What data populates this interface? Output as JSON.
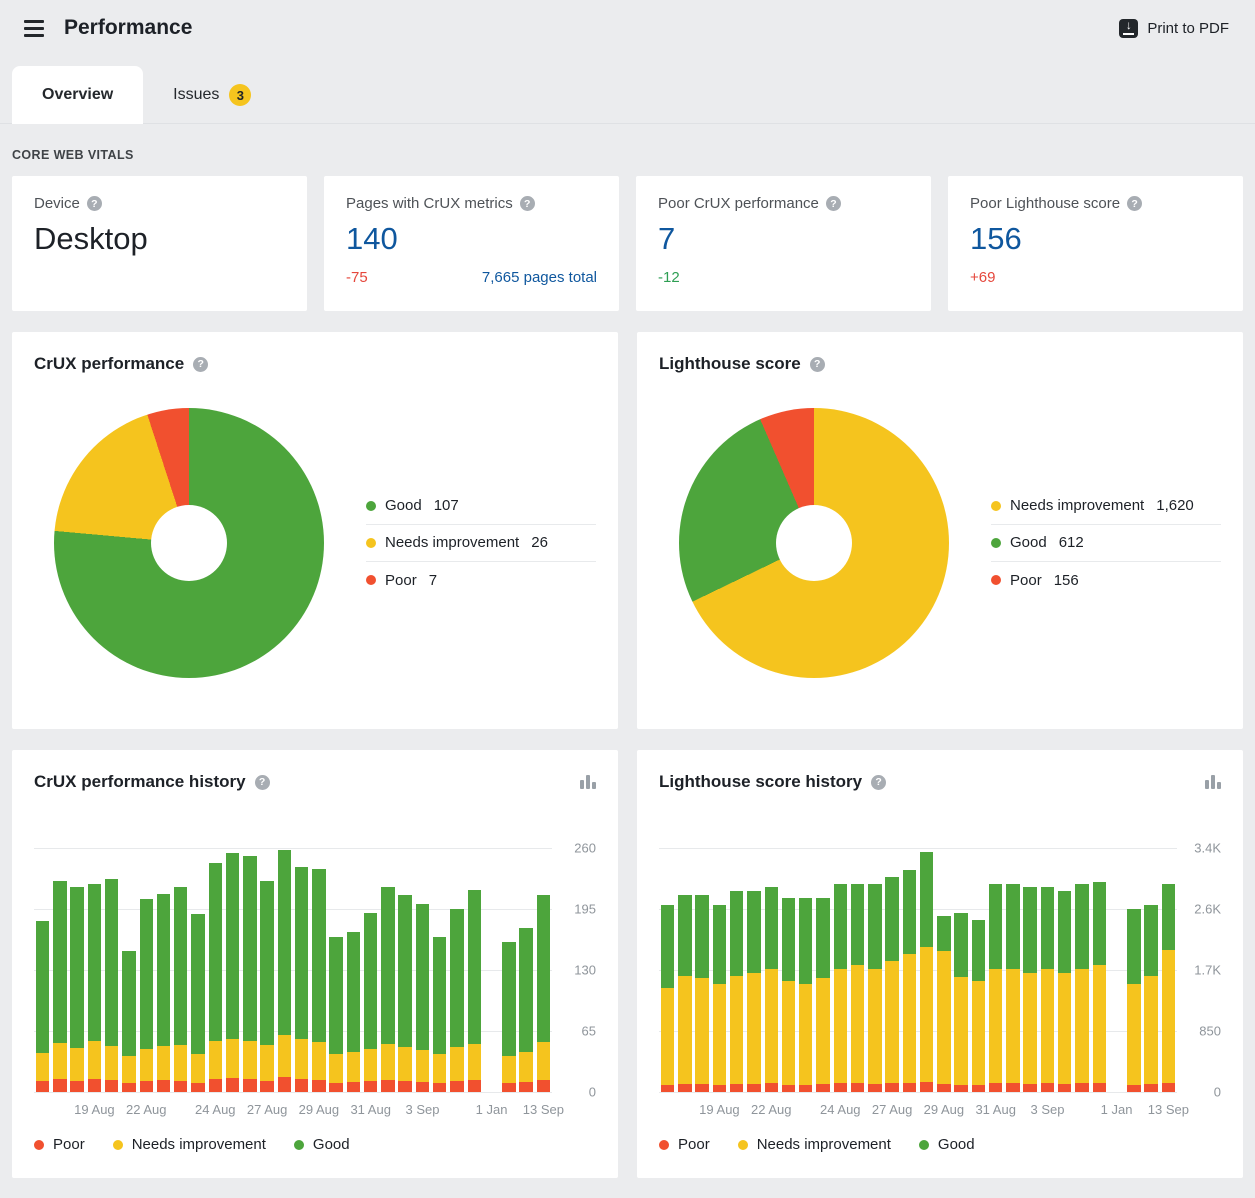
{
  "header": {
    "title": "Performance",
    "print_label": "Print to PDF"
  },
  "tabs": [
    {
      "label": "Overview",
      "active": true
    },
    {
      "label": "Issues",
      "badge": "3"
    }
  ],
  "section_label": "CORE WEB VITALS",
  "metrics": [
    {
      "label": "Device",
      "value": "Desktop"
    },
    {
      "label": "Pages with CrUX metrics",
      "value": "140",
      "delta": "-75",
      "extra_link": "7,665 pages total"
    },
    {
      "label": "Poor CrUX performance",
      "value": "7",
      "delta": "-12"
    },
    {
      "label": "Poor Lighthouse score",
      "value": "156",
      "delta": "+69"
    }
  ],
  "colors": {
    "good": "#4DA53C",
    "needs_improvement": "#F5C41E",
    "poor": "#F1502F",
    "blue": "#0F579E",
    "delta_red": "#E5473C",
    "delta_green": "#2E9E53"
  },
  "chart_data": [
    {
      "type": "pie",
      "title": "CrUX performance",
      "donut": true,
      "segments": [
        {
          "label": "Good",
          "value": 107,
          "display": "107",
          "color_key": "good"
        },
        {
          "label": "Needs improvement",
          "value": 26,
          "display": "26",
          "color_key": "needs_improvement"
        },
        {
          "label": "Poor",
          "value": 7,
          "display": "7",
          "color_key": "poor"
        }
      ]
    },
    {
      "type": "pie",
      "title": "Lighthouse score",
      "donut": true,
      "segments": [
        {
          "label": "Needs improvement",
          "value": 1620,
          "display": "1,620",
          "color_key": "needs_improvement"
        },
        {
          "label": "Good",
          "value": 612,
          "display": "612",
          "color_key": "good"
        },
        {
          "label": "Poor",
          "value": 156,
          "display": "156",
          "color_key": "poor"
        }
      ]
    },
    {
      "type": "bar",
      "title": "CrUX performance history",
      "stacked": true,
      "ymax": 260,
      "yticks": [
        "260",
        "195",
        "130",
        "65",
        "0"
      ],
      "x_ticks": [
        {
          "i": 3,
          "label": "19 Aug"
        },
        {
          "i": 6,
          "label": "22 Aug"
        },
        {
          "i": 10,
          "label": "24 Aug"
        },
        {
          "i": 13,
          "label": "27 Aug"
        },
        {
          "i": 16,
          "label": "29 Aug"
        },
        {
          "i": 19,
          "label": "31 Aug"
        },
        {
          "i": 22,
          "label": "3 Sep"
        },
        {
          "i": 26,
          "label": "1 Jan"
        },
        {
          "i": 29,
          "label": "13 Sep"
        }
      ],
      "series_order": [
        "poor",
        "needs_improvement",
        "good"
      ],
      "bars": [
        [
          12,
          30,
          140
        ],
        [
          14,
          38,
          173
        ],
        [
          12,
          35,
          172
        ],
        [
          14,
          40,
          168
        ],
        [
          13,
          36,
          178
        ],
        [
          10,
          28,
          112
        ],
        [
          12,
          34,
          160
        ],
        [
          13,
          36,
          162
        ],
        [
          12,
          38,
          168
        ],
        [
          10,
          30,
          150
        ],
        [
          14,
          40,
          190
        ],
        [
          15,
          42,
          198
        ],
        [
          14,
          40,
          198
        ],
        [
          12,
          38,
          175
        ],
        [
          16,
          45,
          197
        ],
        [
          14,
          42,
          184
        ],
        [
          13,
          40,
          185
        ],
        [
          10,
          30,
          125
        ],
        [
          11,
          32,
          128
        ],
        [
          12,
          34,
          145
        ],
        [
          13,
          38,
          167
        ],
        [
          12,
          36,
          162
        ],
        [
          11,
          34,
          155
        ],
        [
          10,
          30,
          125
        ],
        [
          12,
          36,
          147
        ],
        [
          13,
          38,
          164
        ],
        null,
        [
          10,
          28,
          122
        ],
        [
          11,
          32,
          132
        ],
        [
          13,
          40,
          157
        ]
      ],
      "legend": [
        {
          "label": "Poor",
          "color_key": "poor"
        },
        {
          "label": "Needs improvement",
          "color_key": "needs_improvement"
        },
        {
          "label": "Good",
          "color_key": "good"
        }
      ]
    },
    {
      "type": "bar",
      "title": "Lighthouse score history",
      "stacked": true,
      "ymax": 3400,
      "yticks": [
        "3.4K",
        "2.6K",
        "1.7K",
        "850",
        "0"
      ],
      "x_ticks": [
        {
          "i": 3,
          "label": "19 Aug"
        },
        {
          "i": 6,
          "label": "22 Aug"
        },
        {
          "i": 10,
          "label": "24 Aug"
        },
        {
          "i": 13,
          "label": "27 Aug"
        },
        {
          "i": 16,
          "label": "29 Aug"
        },
        {
          "i": 19,
          "label": "31 Aug"
        },
        {
          "i": 22,
          "label": "3 Sep"
        },
        {
          "i": 26,
          "label": "1 Jan"
        },
        {
          "i": 29,
          "label": "13 Sep"
        }
      ],
      "series_order": [
        "poor",
        "needs_improvement",
        "good"
      ],
      "bars": [
        [
          100,
          1350,
          1150
        ],
        [
          110,
          1500,
          1140
        ],
        [
          110,
          1480,
          1160
        ],
        [
          100,
          1400,
          1100
        ],
        [
          110,
          1500,
          1190
        ],
        [
          110,
          1550,
          1140
        ],
        [
          120,
          1600,
          1130
        ],
        [
          100,
          1450,
          1150
        ],
        [
          100,
          1400,
          1200
        ],
        [
          110,
          1480,
          1110
        ],
        [
          120,
          1600,
          1180
        ],
        [
          120,
          1650,
          1130
        ],
        [
          110,
          1600,
          1190
        ],
        [
          120,
          1700,
          1180
        ],
        [
          130,
          1800,
          1170
        ],
        [
          140,
          1880,
          1330
        ],
        [
          110,
          1850,
          490
        ],
        [
          100,
          1500,
          900
        ],
        [
          100,
          1450,
          850
        ],
        [
          120,
          1600,
          1180
        ],
        [
          120,
          1600,
          1180
        ],
        [
          110,
          1550,
          1190
        ],
        [
          120,
          1600,
          1130
        ],
        [
          110,
          1550,
          1140
        ],
        [
          120,
          1600,
          1180
        ],
        [
          120,
          1650,
          1150
        ],
        null,
        [
          100,
          1400,
          1050
        ],
        [
          110,
          1500,
          1000
        ],
        [
          130,
          1850,
          920
        ]
      ],
      "legend": [
        {
          "label": "Poor",
          "color_key": "poor"
        },
        {
          "label": "Needs improvement",
          "color_key": "needs_improvement"
        },
        {
          "label": "Good",
          "color_key": "good"
        }
      ]
    }
  ]
}
